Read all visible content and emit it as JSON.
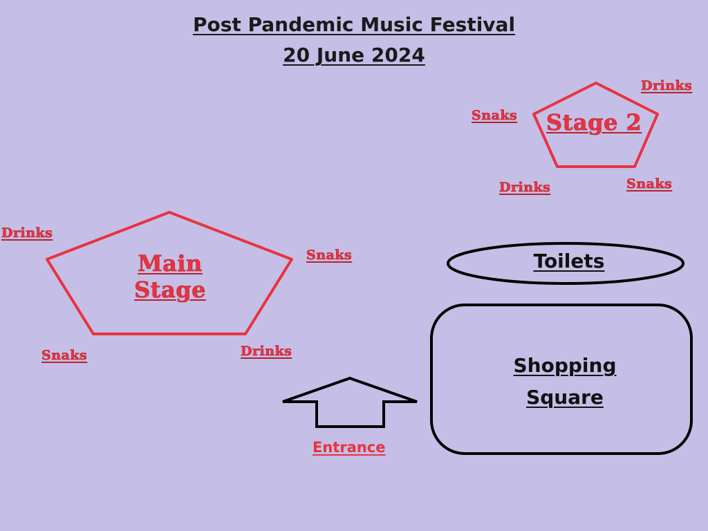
{
  "title": {
    "line1": "Post Pandemic Music Festival",
    "line2": "20 June 2024"
  },
  "main_stage": {
    "label_line1": "Main",
    "label_line2": "Stage",
    "drinks_left": "Drinks",
    "snacks_right": "Snaks",
    "snacks_bottom": "Snaks",
    "drinks_bottom": "Drinks"
  },
  "stage2": {
    "label": "Stage 2",
    "drinks_top_right": "Drinks",
    "snacks_left": "Snaks",
    "drinks_bottom_left": "Drinks",
    "snacks_bottom_right": "Snaks"
  },
  "toilets": {
    "label": "Toilets"
  },
  "shopping_square": {
    "label_line1": "Shopping",
    "label_line2": "Square"
  },
  "entrance": {
    "label": "Entrance"
  },
  "colors": {
    "background": "#c5bee6",
    "stage_outline": "#e8333f",
    "facility_outline": "#000000"
  }
}
